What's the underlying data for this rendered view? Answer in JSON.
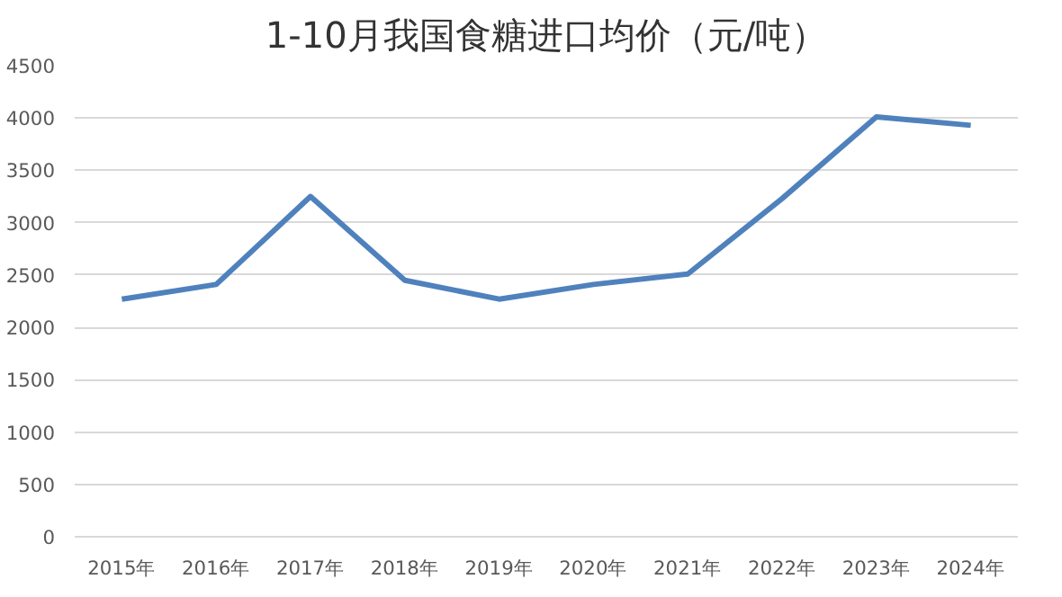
{
  "chart_data": {
    "type": "line",
    "title": "1-10月我国食糖进口均价（元/吨）",
    "categories": [
      "2015年",
      "2016年",
      "2017年",
      "2018年",
      "2019年",
      "2020年",
      "2021年",
      "2022年",
      "2023年",
      "2024年"
    ],
    "series": [
      {
        "color": "#4f81bd",
        "values": [
          2270,
          2410,
          3250,
          2450,
          2270,
          2410,
          2510,
          3230,
          4010,
          3930
        ]
      }
    ],
    "ylim": [
      0,
      4500
    ],
    "yticks": [
      0,
      500,
      1000,
      1500,
      2000,
      2500,
      3000,
      3500,
      4000,
      4500
    ],
    "grid": "y",
    "line_style": "solid"
  }
}
